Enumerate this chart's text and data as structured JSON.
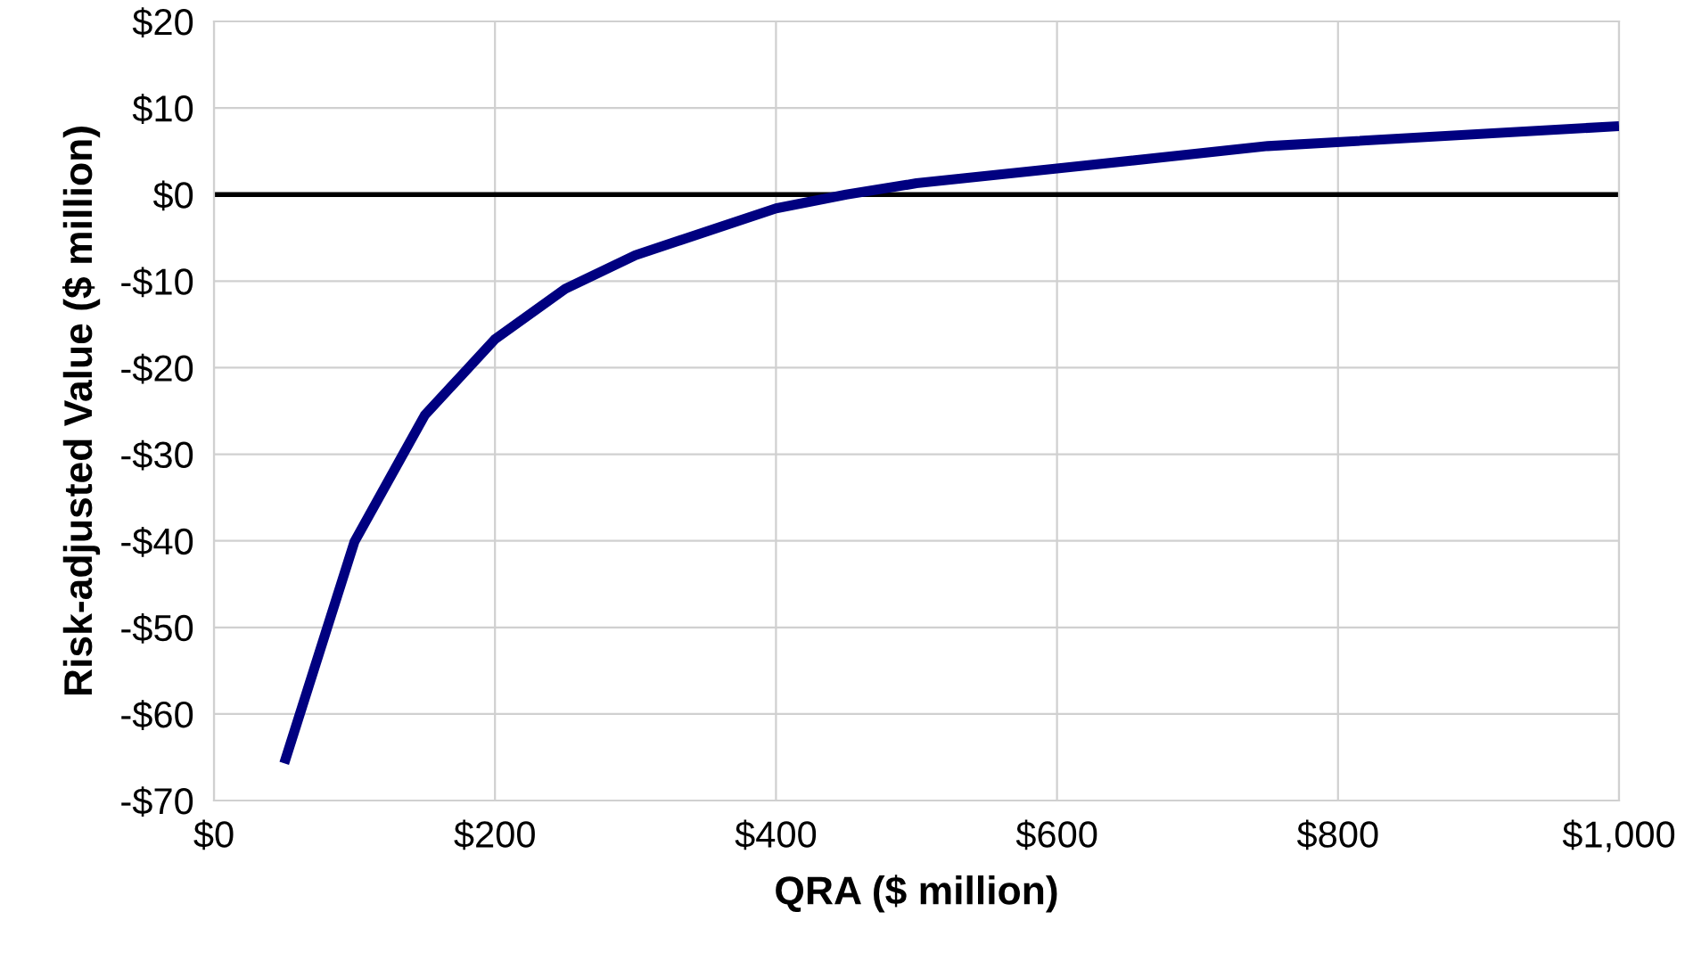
{
  "chart_data": {
    "type": "line",
    "xlabel": "QRA ($ million)",
    "ylabel": "Risk-adjusted Value ($ million)",
    "x": [
      50,
      100,
      150,
      200,
      250,
      300,
      400,
      450,
      500,
      600,
      750,
      1000
    ],
    "series": [
      {
        "color": "#000080",
        "values": [
          -65.7,
          -40.1,
          -25.5,
          -16.7,
          -10.9,
          -7,
          -1.6,
          0,
          1.3,
          3,
          5.6,
          7.9
        ]
      }
    ],
    "xlim": [
      0,
      1000
    ],
    "xticks": [
      {
        "value": 0,
        "label": "$0"
      },
      {
        "value": 200,
        "label": "$200"
      },
      {
        "value": 400,
        "label": "$400"
      },
      {
        "value": 600,
        "label": "$600"
      },
      {
        "value": 800,
        "label": "$800"
      },
      {
        "value": 1000,
        "label": "$1,000"
      }
    ],
    "ylim": [
      -70,
      20
    ],
    "yticks": [
      {
        "value": -70,
        "label": "-$70"
      },
      {
        "value": -60,
        "label": "-$60"
      },
      {
        "value": -50,
        "label": "-$50"
      },
      {
        "value": -40,
        "label": "-$40"
      },
      {
        "value": -30,
        "label": "-$30"
      },
      {
        "value": -20,
        "label": "-$20"
      },
      {
        "value": -10,
        "label": "-$10"
      },
      {
        "value": 0,
        "label": "$0"
      },
      {
        "value": 10,
        "label": "$10"
      },
      {
        "value": 20,
        "label": "$20"
      }
    ],
    "ref_lines": [
      {
        "axis": "y",
        "value": 0,
        "color": "#000000"
      }
    ],
    "grid": true,
    "marker": "none",
    "line_style": "solid",
    "legend": false
  }
}
